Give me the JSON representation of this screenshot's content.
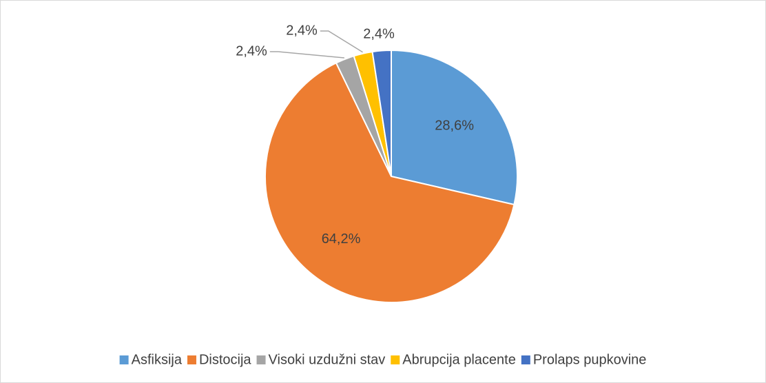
{
  "chart_data": {
    "type": "pie",
    "categories": [
      "Asfiksija",
      "Distocija",
      "Visoki uzdužni stav",
      "Abrupcija placente",
      "Prolaps pupkovine"
    ],
    "values": [
      28.6,
      64.2,
      2.4,
      2.4,
      2.4
    ],
    "value_labels": [
      "28,6%",
      "64,2%",
      "2,4%",
      "2,4%",
      "2,4%"
    ],
    "colors": [
      "#5b9bd5",
      "#ed7d31",
      "#a5a5a5",
      "#ffc000",
      "#4472c4"
    ],
    "legend": "bottom"
  }
}
